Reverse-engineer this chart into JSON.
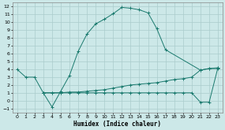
{
  "xlabel": "Humidex (Indice chaleur)",
  "bg_color": "#cce8e8",
  "grid_color": "#aacccc",
  "line_color": "#1a7a6e",
  "xlim": [
    -0.5,
    23.5
  ],
  "ylim": [
    -1.5,
    12.5
  ],
  "xticks": [
    0,
    1,
    2,
    3,
    4,
    5,
    6,
    7,
    8,
    9,
    10,
    11,
    12,
    13,
    14,
    15,
    16,
    17,
    18,
    19,
    20,
    21,
    22,
    23
  ],
  "yticks": [
    -1,
    0,
    1,
    2,
    3,
    4,
    5,
    6,
    7,
    8,
    9,
    10,
    11,
    12
  ],
  "curve1_x": [
    0,
    1,
    2,
    3,
    4,
    5,
    6,
    7,
    8,
    9,
    10,
    11,
    12,
    13,
    14,
    15,
    16,
    17,
    21,
    22,
    23
  ],
  "curve1_y": [
    4.0,
    3.0,
    3.0,
    1.0,
    -0.8,
    1.2,
    3.2,
    6.3,
    8.5,
    9.8,
    10.4,
    11.1,
    11.9,
    11.8,
    11.6,
    11.2,
    9.2,
    6.5,
    3.9,
    4.1,
    4.1
  ],
  "curve2_x": [
    3,
    4,
    5,
    6,
    7,
    8,
    9,
    10,
    11,
    12,
    13,
    14,
    15,
    16,
    17,
    18,
    19,
    20,
    21,
    22,
    23
  ],
  "curve2_y": [
    1.0,
    1.0,
    1.0,
    1.1,
    1.1,
    1.2,
    1.3,
    1.4,
    1.6,
    1.8,
    2.0,
    2.1,
    2.2,
    2.3,
    2.5,
    2.7,
    2.8,
    3.0,
    3.9,
    4.1,
    4.2
  ],
  "curve3_x": [
    3,
    4,
    5,
    6,
    7,
    8,
    9,
    10,
    11,
    12,
    13,
    14,
    15,
    16,
    17,
    18,
    19,
    20,
    21,
    22,
    23
  ],
  "curve3_y": [
    1.0,
    1.0,
    1.0,
    1.0,
    1.0,
    1.0,
    1.0,
    1.0,
    1.0,
    1.0,
    1.0,
    1.0,
    1.0,
    1.0,
    1.0,
    1.0,
    1.0,
    1.0,
    -0.2,
    -0.2,
    4.2
  ]
}
